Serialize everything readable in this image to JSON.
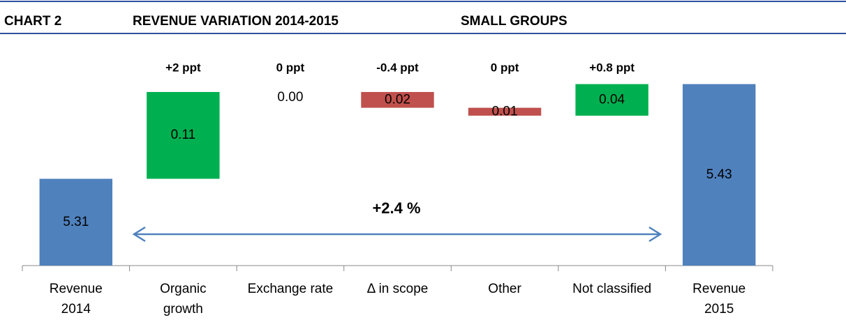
{
  "chart_data": {
    "type": "waterfall",
    "header": {
      "label": "CHART 2",
      "title": "REVENUE VARIATION 2014-2015",
      "subtitle": "SMALL GROUPS"
    },
    "categories": [
      "Revenue\n2014",
      "Organic\ngrowth",
      "Exchange rate",
      "Δ in scope",
      "Other",
      "Not classified",
      "Revenue\n2015"
    ],
    "values": [
      5.31,
      0.11,
      0.0,
      -0.02,
      -0.01,
      0.04,
      5.43
    ],
    "value_labels": [
      "5.31",
      "0.11",
      "0.00",
      "0.02",
      "0.01",
      "0.04",
      "5.43"
    ],
    "totals": [
      true,
      false,
      false,
      false,
      false,
      false,
      true
    ],
    "ppt_labels": [
      null,
      "+2 ppt",
      "0 ppt",
      "-0.4 ppt",
      "0 ppt",
      "+0.8 ppt",
      null
    ],
    "arrow_label": "+2.4 %",
    "colors": {
      "total": "#4f81bd",
      "increase": "#00b050",
      "decrease": "#c0504d"
    },
    "ylim": [
      5.2,
      5.45
    ]
  }
}
